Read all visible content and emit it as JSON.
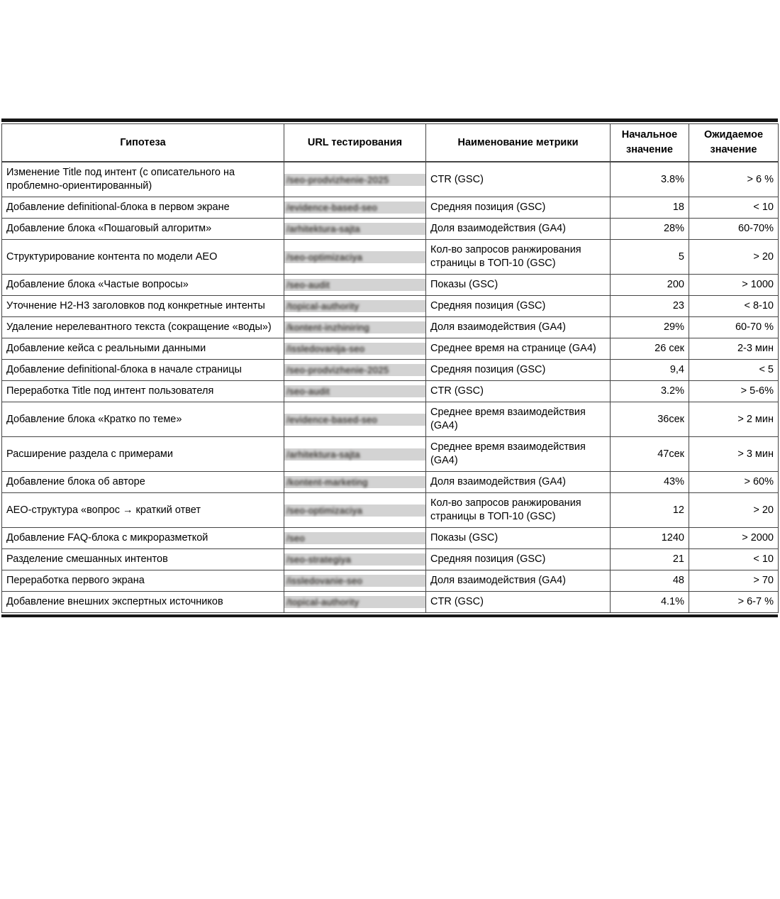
{
  "table": {
    "headers": {
      "hypothesis": "Гипотеза",
      "url": "URL тестирования",
      "metric": "Наименование метрики",
      "initial": "Начальное значение",
      "expected": "Ожидаемое значение"
    },
    "rows": [
      {
        "hypothesis": "Изменение Title под интент (с описательного на проблемно-ориентированный)",
        "url": "/seo-prodvizhenie-2025",
        "metric": "CTR (GSC)",
        "initial": "3.8%",
        "expected": "> 6 %"
      },
      {
        "hypothesis": "Добавление definitional-блока в первом экране",
        "url": "/evidence-based-seo",
        "metric": "Средняя позиция (GSC)",
        "initial": "18",
        "expected": "< 10"
      },
      {
        "hypothesis": "Добавление блока «Пошаговый алгоритм»",
        "url": "/arhitektura-sajta",
        "metric": "Доля взаимодействия (GA4)",
        "initial": "28%",
        "expected": "60-70%"
      },
      {
        "hypothesis": "Структурирование контента по модели AEO",
        "url": "/seo-optimizaciya",
        "metric": "Кол-во запросов ранжирования страницы в ТОП-10 (GSC)",
        "initial": "5",
        "expected": "> 20"
      },
      {
        "hypothesis": "Добавление блока «Частые вопросы»",
        "url": "/seo-audit",
        "metric": "Показы (GSC)",
        "initial": "200",
        "expected": "> 1000"
      },
      {
        "hypothesis": "Уточнение H2-H3 заголовков под конкретные интенты",
        "url": "/topical-authority",
        "metric": "Средняя позиция (GSC)",
        "initial": "23",
        "expected": "< 8-10"
      },
      {
        "hypothesis": "Удаление нерелевантного текста (сокращение «воды»)",
        "url": "/kontent-inzhiniring",
        "metric": "Доля взаимодействия (GA4)",
        "initial": "29%",
        "expected": "60-70 %"
      },
      {
        "hypothesis": "Добавление кейса с реальными данными",
        "url": "/issledovanija-seo",
        "metric": "Среднее время на странице (GA4)",
        "initial": "26 сек",
        "expected": "2-3 мин"
      },
      {
        "hypothesis": "Добавление definitional-блока в начале страницы",
        "url": "/seo-prodvizhenie-2025",
        "metric": "Средняя позиция (GSC)",
        "initial": "9,4",
        "expected": "< 5"
      },
      {
        "hypothesis": "Переработка Title под интент пользователя",
        "url": "/seo-audit",
        "metric": "CTR (GSC)",
        "initial": "3.2%",
        "expected": "> 5-6%"
      },
      {
        "hypothesis": "Добавление блока «Кратко по теме»",
        "url": "/evidence-based-seo",
        "metric": "Среднее время взаимодействия (GA4)",
        "initial": "36сек",
        "expected": "> 2 мин"
      },
      {
        "hypothesis": "Расширение раздела с примерами",
        "url": "/arhitektura-sajta",
        "metric": "Среднее время взаимодействия (GA4)",
        "initial": "47сек",
        "expected": "> 3 мин"
      },
      {
        "hypothesis": "Добавление блока об авторе",
        "url": "/kontent-marketing",
        "metric": "Доля взаимодействия (GA4)",
        "initial": "43%",
        "expected": "> 60%"
      },
      {
        "hypothesis": "AEO-структура «вопрос → краткий ответ",
        "url": "/seo-optimizaciya",
        "metric": "Кол-во запросов ранжирования страницы в ТОП-10 (GSC)",
        "initial": "12",
        "expected": "> 20"
      },
      {
        "hypothesis": "Добавление FAQ-блока с микроразметкой",
        "url": "/seo",
        "metric": "Показы (GSC)",
        "initial": "1240",
        "expected": "> 2000"
      },
      {
        "hypothesis": "Разделение смешанных интентов",
        "url": "/seo-strategiya",
        "metric": "Средняя позиция (GSC)",
        "initial": "21",
        "expected": "< 10"
      },
      {
        "hypothesis": "Переработка первого экрана",
        "url": "/issledovanie-seo",
        "metric": "Доля взаимодействия (GA4)",
        "initial": "48",
        "expected": "> 70"
      },
      {
        "hypothesis": "Добавление внешних экспертных источников",
        "url": "/topical-authority",
        "metric": "CTR (GSC)",
        "initial": "4.1%",
        "expected": "> 6-7 %"
      }
    ]
  },
  "colors": {
    "redaction_bar": "#d3d3d3",
    "grid_border": "#454545",
    "outer_border": "#171717"
  }
}
